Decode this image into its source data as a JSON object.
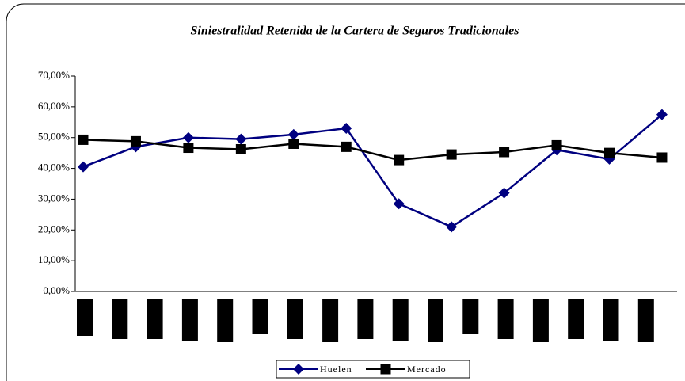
{
  "chart_data": {
    "type": "line",
    "title": "Siniestralidad Retenida de la Cartera de Seguros Tradicionales",
    "categories": [
      null,
      null,
      null,
      null,
      null,
      null,
      null,
      null,
      null,
      null,
      null,
      null
    ],
    "series": [
      {
        "name": "Huelen",
        "color": "#000080",
        "marker": "diamond",
        "values": [
          40.5,
          47,
          50,
          49.5,
          51,
          53,
          28.5,
          21,
          32,
          46,
          43,
          57.5
        ]
      },
      {
        "name": "Mercado",
        "color": "#000000",
        "marker": "square",
        "values": [
          49.3,
          48.8,
          46.7,
          46.2,
          48,
          47,
          42.7,
          44.5,
          45.3,
          47.5,
          45,
          43.5
        ]
      }
    ],
    "ylim": [
      0,
      70
    ],
    "yticks": [
      {
        "value": 0,
        "label": "0,00%"
      },
      {
        "value": 10,
        "label": "10,00%"
      },
      {
        "value": 20,
        "label": "20,00%"
      },
      {
        "value": 30,
        "label": "30,00%"
      },
      {
        "value": 40,
        "label": "40,00%"
      },
      {
        "value": 50,
        "label": "50,00%"
      },
      {
        "value": 60,
        "label": "60,00%"
      },
      {
        "value": 70,
        "label": "70,00%"
      }
    ],
    "legend": "bottom"
  }
}
